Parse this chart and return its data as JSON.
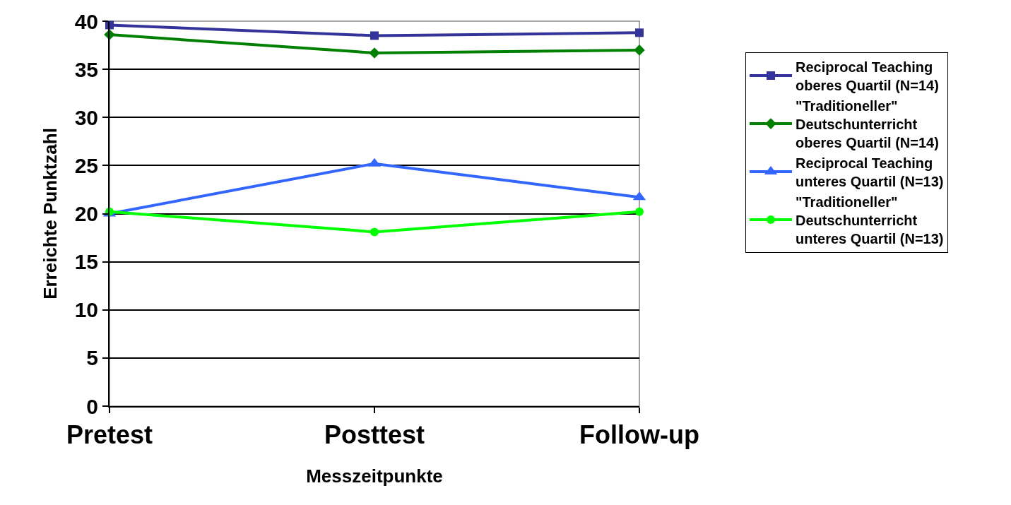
{
  "chart_data": {
    "type": "line",
    "xlabel": "Messzeitpunkte",
    "ylabel": "Erreichte Punktzahl",
    "categories": [
      "Pretest",
      "Posttest",
      "Follow-up"
    ],
    "ylim": [
      0,
      40
    ],
    "yticks": [
      0,
      5,
      10,
      15,
      20,
      25,
      30,
      35,
      40
    ],
    "grid": "y",
    "legend": "right",
    "line_style": "solid",
    "series": [
      {
        "name": "Reciprocal Teaching oberes Quartil (N=14)",
        "color": "#333399",
        "marker": "square",
        "values": [
          39.6,
          38.5,
          38.8
        ]
      },
      {
        "name": "\"Traditioneller\" Deutschunterricht oberes Quartil (N=14)",
        "color": "#008000",
        "marker": "diamond",
        "values": [
          38.6,
          36.7,
          37.0
        ]
      },
      {
        "name": "Reciprocal Teaching unteres Quartil (N=13)",
        "color": "#3366ff",
        "marker": "triangle",
        "values": [
          20.0,
          25.2,
          21.7
        ]
      },
      {
        "name": "\"Traditioneller\" Deutschunterricht unteres Quartil (N=13)",
        "color": "#00ff00",
        "marker": "circle",
        "values": [
          20.2,
          18.1,
          20.2
        ]
      }
    ]
  }
}
